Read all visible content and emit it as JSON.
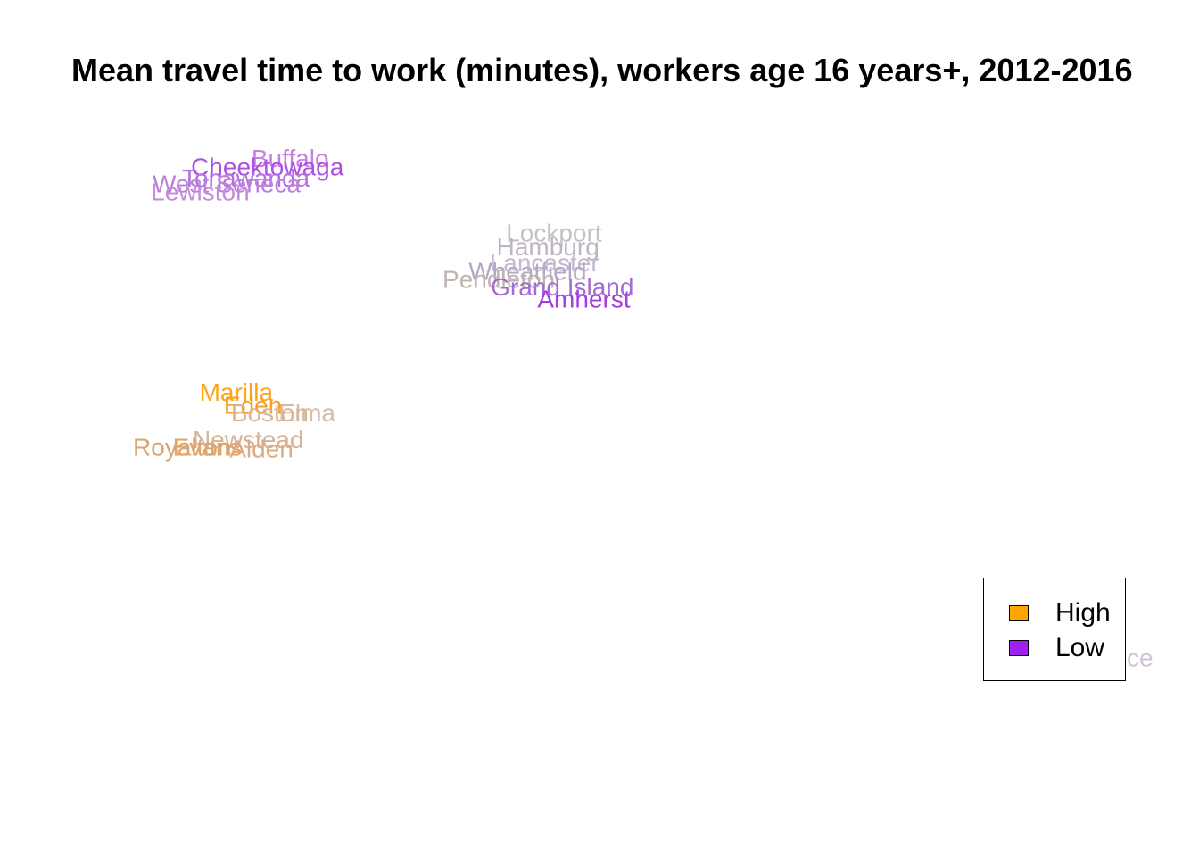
{
  "chart_data": {
    "type": "text-scatter",
    "title": "Mean travel time to work (minutes), workers age 16 years+, 2012-2016",
    "xlabel": "",
    "ylabel": "",
    "axes_shown": false,
    "legend_position": "bottom-right",
    "legend": [
      {
        "label": "High",
        "color": "#FFA500"
      },
      {
        "label": "Low",
        "color": "#A020F0"
      }
    ],
    "xlim": [
      0,
      100
    ],
    "ylim": [
      0,
      100
    ],
    "points": [
      {
        "name": "Buffalo",
        "x": 24.2,
        "y": 81.3,
        "color": "#C77FE0"
      },
      {
        "name": "Cheektowaga",
        "x": 22.3,
        "y": 80.3,
        "color": "#AE4FE4"
      },
      {
        "name": "Tonawanda",
        "x": 20.5,
        "y": 79.0,
        "color": "#B66FE0"
      },
      {
        "name": "West Seneca",
        "x": 18.9,
        "y": 78.3,
        "color": "#BA82DD"
      },
      {
        "name": "Lewiston",
        "x": 16.7,
        "y": 77.4,
        "color": "#C48BDB"
      },
      {
        "name": "Lockport",
        "x": 46.2,
        "y": 72.6,
        "color": "#C6C2C2"
      },
      {
        "name": "Hamburg",
        "x": 45.7,
        "y": 71.0,
        "color": "#BDB4C5"
      },
      {
        "name": "Lancaster",
        "x": 45.4,
        "y": 69.1,
        "color": "#C5B8D1"
      },
      {
        "name": "Wheatfield",
        "x": 44.0,
        "y": 68.1,
        "color": "#B5A8C5"
      },
      {
        "name": "Pendleton",
        "x": 41.6,
        "y": 67.2,
        "color": "#BFB6B0"
      },
      {
        "name": "Grand Island",
        "x": 46.9,
        "y": 66.3,
        "color": "#A46CD2"
      },
      {
        "name": "Amherst",
        "x": 48.7,
        "y": 64.9,
        "color": "#A53CE0"
      },
      {
        "name": "Marilla",
        "x": 19.7,
        "y": 54.0,
        "color": "#F9A516"
      },
      {
        "name": "Eden",
        "x": 21.1,
        "y": 52.5,
        "color": "#F6A120"
      },
      {
        "name": "Elma",
        "x": 25.6,
        "y": 51.6,
        "color": "#D3BCAB"
      },
      {
        "name": "Boston",
        "x": 22.5,
        "y": 51.6,
        "color": "#D7B596"
      },
      {
        "name": "Newstead",
        "x": 20.7,
        "y": 48.5,
        "color": "#D6B397"
      },
      {
        "name": "Evans",
        "x": 17.3,
        "y": 47.6,
        "color": "#E0A565"
      },
      {
        "name": "Alden",
        "x": 21.8,
        "y": 47.4,
        "color": "#DDAB82"
      },
      {
        "name": "Royalton",
        "x": 15.2,
        "y": 47.6,
        "color": "#DBA470"
      },
      {
        "name": "Clarence",
        "x": 92.0,
        "y": 23.0,
        "color": "#CFC3D9"
      }
    ]
  }
}
